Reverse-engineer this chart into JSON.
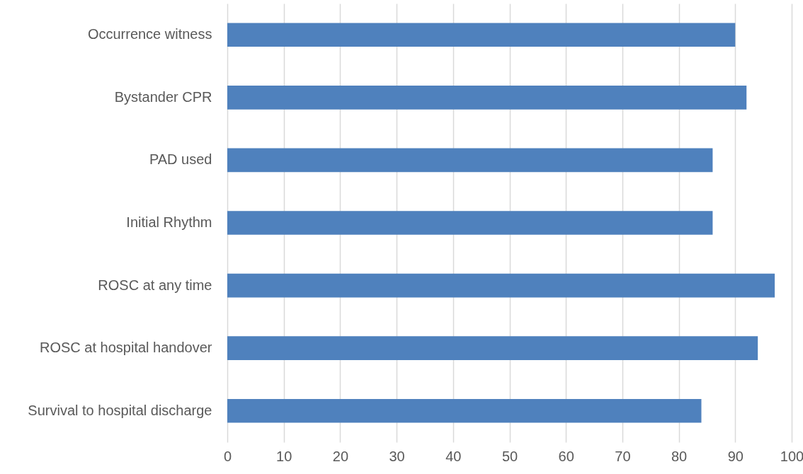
{
  "chart_data": {
    "type": "bar",
    "orientation": "horizontal",
    "categories": [
      "Occurrence witness",
      "Bystander CPR",
      "PAD used",
      "Initial Rhythm",
      "ROSC at any time",
      "ROSC at hospital handover",
      "Survival to hospital discharge"
    ],
    "values": [
      90,
      92,
      86,
      86,
      97,
      94,
      84
    ],
    "color": "#4f81bd",
    "xlim": [
      0,
      100
    ],
    "xticks": [
      0,
      10,
      20,
      30,
      40,
      50,
      60,
      70,
      80,
      90,
      100
    ],
    "grid": "x"
  }
}
